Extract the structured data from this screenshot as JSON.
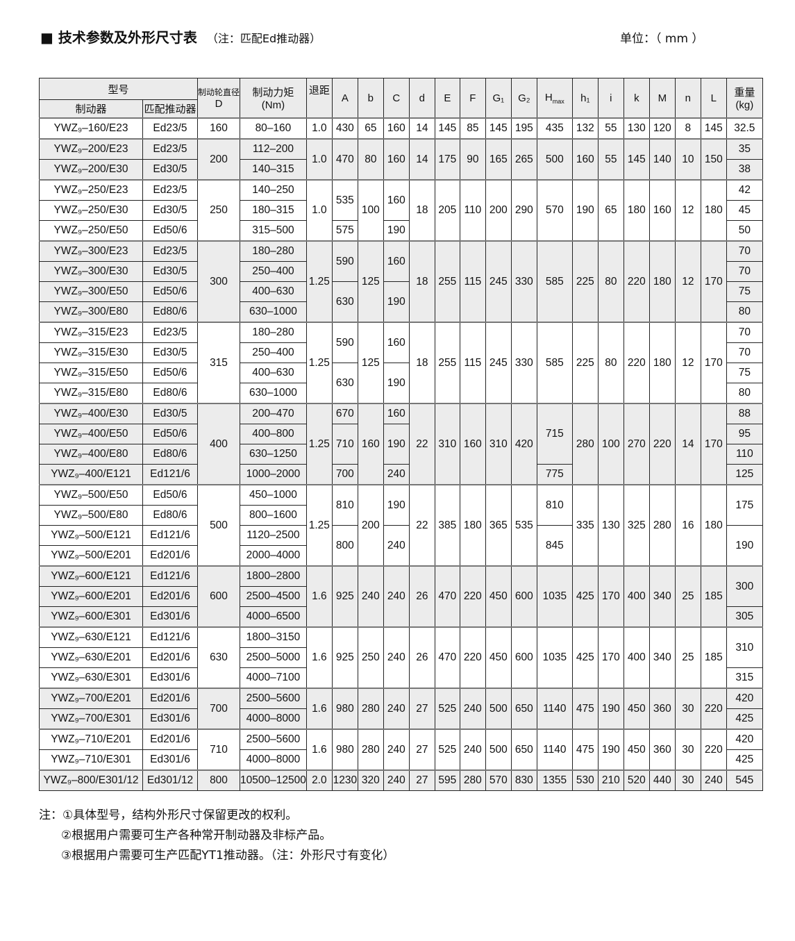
{
  "title": "■ 技术参数及外形尺寸表",
  "title_note": "（注：匹配Ed推动器）",
  "unit": "单位：（ mm ）",
  "headers": {
    "model": "型号",
    "brake": "制动器",
    "actuator": "匹配推动器",
    "D_top": "制动轮直径",
    "D": "D",
    "torque": "制动力矩",
    "torque_unit": "(Nm)",
    "retreat": "退距",
    "A": "A",
    "b": "b",
    "C": "C",
    "d": "d",
    "E": "E",
    "F": "F",
    "G1": "G₁",
    "G2": "G₂",
    "H": "H",
    "H_sub": "max",
    "h1": "h₁",
    "i": "i",
    "k": "k",
    "M": "M",
    "n": "n",
    "L": "L",
    "weight": "重量",
    "weight_unit": "(kg)"
  },
  "groups": [
    {
      "shade": false,
      "rows": [
        [
          "YWZ₉–160/E23",
          "Ed23/5",
          "80–160"
        ]
      ],
      "D": "160",
      "retreat": "1.0",
      "A": "430",
      "b": "65",
      "C": "160",
      "d": "14",
      "E": "145",
      "F": "85",
      "G1": "145",
      "G2": "195",
      "Hmax": "435",
      "h1": "132",
      "i": "55",
      "k": "130",
      "M": "120",
      "n": "8",
      "L": "145",
      "weight": [
        [
          "32.5",
          1
        ]
      ]
    },
    {
      "shade": true,
      "rows": [
        [
          "YWZ₉–200/E23",
          "Ed23/5",
          "112–200"
        ],
        [
          "YWZ₉–200/E30",
          "Ed30/5",
          "140–315"
        ]
      ],
      "D": "200",
      "retreat": "1.0",
      "A": "470",
      "b": "80",
      "C": "160",
      "d": "14",
      "E": "175",
      "F": "90",
      "G1": "165",
      "G2": "265",
      "Hmax": "500",
      "h1": "160",
      "i": "55",
      "k": "145",
      "M": "140",
      "n": "10",
      "L": "150",
      "weight": [
        [
          "35",
          1
        ],
        [
          "38",
          1
        ]
      ]
    },
    {
      "shade": false,
      "rows": [
        [
          "YWZ₉–250/E23",
          "Ed23/5",
          "140–250"
        ],
        [
          "YWZ₉–250/E30",
          "Ed30/5",
          "180–315"
        ],
        [
          "YWZ₉–250/E50",
          "Ed50/6",
          "315–500"
        ]
      ],
      "D": "250",
      "retreat": "1.0",
      "A": [
        [
          "535",
          2
        ],
        [
          "575",
          1
        ]
      ],
      "b": "100",
      "C": [
        [
          "160",
          2
        ],
        [
          "190",
          1
        ]
      ],
      "d": "18",
      "E": "205",
      "F": "110",
      "G1": "200",
      "G2": "290",
      "Hmax": "570",
      "h1": "190",
      "i": "65",
      "k": "180",
      "M": "160",
      "n": "12",
      "L": "180",
      "weight": [
        [
          "42",
          1
        ],
        [
          "45",
          1
        ],
        [
          "50",
          1
        ]
      ]
    },
    {
      "shade": true,
      "rows": [
        [
          "YWZ₉–300/E23",
          "Ed23/5",
          "180–280"
        ],
        [
          "YWZ₉–300/E30",
          "Ed30/5",
          "250–400"
        ],
        [
          "YWZ₉–300/E50",
          "Ed50/6",
          "400–630"
        ],
        [
          "YWZ₉–300/E80",
          "Ed80/6",
          "630–1000"
        ]
      ],
      "D": "300",
      "retreat": "1.25",
      "A": [
        [
          "590",
          2
        ],
        [
          "630",
          2
        ]
      ],
      "b": "125",
      "C": [
        [
          "160",
          2
        ],
        [
          "190",
          2
        ]
      ],
      "d": "18",
      "E": "255",
      "F": "115",
      "G1": "245",
      "G2": "330",
      "Hmax": "585",
      "h1": "225",
      "i": "80",
      "k": "220",
      "M": "180",
      "n": "12",
      "L": "170",
      "weight": [
        [
          "70",
          1
        ],
        [
          "70",
          1
        ],
        [
          "75",
          1
        ],
        [
          "80",
          1
        ]
      ]
    },
    {
      "shade": false,
      "rows": [
        [
          "YWZ₉–315/E23",
          "Ed23/5",
          "180–280"
        ],
        [
          "YWZ₉–315/E30",
          "Ed30/5",
          "250–400"
        ],
        [
          "YWZ₉–315/E50",
          "Ed50/6",
          "400–630"
        ],
        [
          "YWZ₉–315/E80",
          "Ed80/6",
          "630–1000"
        ]
      ],
      "D": "315",
      "retreat": "1.25",
      "A": [
        [
          "590",
          2
        ],
        [
          "630",
          2
        ]
      ],
      "b": "125",
      "C": [
        [
          "160",
          2
        ],
        [
          "190",
          2
        ]
      ],
      "d": "18",
      "E": "255",
      "F": "115",
      "G1": "245",
      "G2": "330",
      "Hmax": "585",
      "h1": "225",
      "i": "80",
      "k": "220",
      "M": "180",
      "n": "12",
      "L": "170",
      "weight": [
        [
          "70",
          1
        ],
        [
          "70",
          1
        ],
        [
          "75",
          1
        ],
        [
          "80",
          1
        ]
      ]
    },
    {
      "shade": true,
      "rows": [
        [
          "YWZ₉–400/E30",
          "Ed30/5",
          "200–470"
        ],
        [
          "YWZ₉–400/E50",
          "Ed50/6",
          "400–800"
        ],
        [
          "YWZ₉–400/E80",
          "Ed80/6",
          "630–1250"
        ],
        [
          "YWZ₉–400/E121",
          "Ed121/6",
          "1000–2000"
        ]
      ],
      "D": "400",
      "retreat": "1.25",
      "A": [
        [
          "670",
          1
        ],
        [
          "710",
          2
        ],
        [
          "700",
          1
        ]
      ],
      "b": "160",
      "C": [
        [
          "160",
          1
        ],
        [
          "190",
          2
        ],
        [
          "240",
          1
        ]
      ],
      "d": "22",
      "E": "310",
      "F": "160",
      "G1": "310",
      "G2": "420",
      "Hmax": [
        [
          "715",
          3
        ],
        [
          "775",
          1
        ]
      ],
      "h1": "280",
      "i": "100",
      "k": "270",
      "M": "220",
      "n": "14",
      "L": "170",
      "weight": [
        [
          "88",
          1
        ],
        [
          "95",
          1
        ],
        [
          "110",
          1
        ],
        [
          "125",
          1
        ]
      ]
    },
    {
      "shade": false,
      "rows": [
        [
          "YWZ₉–500/E50",
          "Ed50/6",
          "450–1000"
        ],
        [
          "YWZ₉–500/E80",
          "Ed80/6",
          "800–1600"
        ],
        [
          "YWZ₉–500/E121",
          "Ed121/6",
          "1120–2500"
        ],
        [
          "YWZ₉–500/E201",
          "Ed201/6",
          "2000–4000"
        ]
      ],
      "D": "500",
      "retreat": "1.25",
      "A": [
        [
          "810",
          2
        ],
        [
          "800",
          2
        ]
      ],
      "b": "200",
      "C": [
        [
          "190",
          2
        ],
        [
          "240",
          2
        ]
      ],
      "d": "22",
      "E": "385",
      "F": "180",
      "G1": "365",
      "G2": "535",
      "Hmax": [
        [
          "810",
          2
        ],
        [
          "845",
          2
        ]
      ],
      "h1": "335",
      "i": "130",
      "k": "325",
      "M": "280",
      "n": "16",
      "L": "180",
      "weight": [
        [
          "175",
          2
        ],
        [
          "190",
          2
        ]
      ]
    },
    {
      "shade": true,
      "rows": [
        [
          "YWZ₉–600/E121",
          "Ed121/6",
          "1800–2800"
        ],
        [
          "YWZ₉–600/E201",
          "Ed201/6",
          "2500–4500"
        ],
        [
          "YWZ₉–600/E301",
          "Ed301/6",
          "4000–6500"
        ]
      ],
      "D": "600",
      "retreat": "1.6",
      "A": "925",
      "b": "240",
      "C": "240",
      "d": "26",
      "E": "470",
      "F": "220",
      "G1": "450",
      "G2": "600",
      "Hmax": "1035",
      "h1": "425",
      "i": "170",
      "k": "400",
      "M": "340",
      "n": "25",
      "L": "185",
      "weight": [
        [
          "300",
          2
        ],
        [
          "305",
          1
        ]
      ]
    },
    {
      "shade": false,
      "rows": [
        [
          "YWZ₉–630/E121",
          "Ed121/6",
          "1800–3150"
        ],
        [
          "YWZ₉–630/E201",
          "Ed201/6",
          "2500–5000"
        ],
        [
          "YWZ₉–630/E301",
          "Ed301/6",
          "4000–7100"
        ]
      ],
      "D": "630",
      "retreat": "1.6",
      "A": "925",
      "b": "250",
      "C": "240",
      "d": "26",
      "E": "470",
      "F": "220",
      "G1": "450",
      "G2": "600",
      "Hmax": "1035",
      "h1": "425",
      "i": "170",
      "k": "400",
      "M": "340",
      "n": "25",
      "L": "185",
      "weight": [
        [
          "310",
          2
        ],
        [
          "315",
          1
        ]
      ]
    },
    {
      "shade": true,
      "rows": [
        [
          "YWZ₉–700/E201",
          "Ed201/6",
          "2500–5600"
        ],
        [
          "YWZ₉–700/E301",
          "Ed301/6",
          "4000–8000"
        ]
      ],
      "D": "700",
      "retreat": "1.6",
      "A": "980",
      "b": "280",
      "C": "240",
      "d": "27",
      "E": "525",
      "F": "240",
      "G1": "500",
      "G2": "650",
      "Hmax": "1140",
      "h1": "475",
      "i": "190",
      "k": "450",
      "M": "360",
      "n": "30",
      "L": "220",
      "weight": [
        [
          "420",
          1
        ],
        [
          "425",
          1
        ]
      ]
    },
    {
      "shade": false,
      "rows": [
        [
          "YWZ₉–710/E201",
          "Ed201/6",
          "2500–5600"
        ],
        [
          "YWZ₉–710/E301",
          "Ed301/6",
          "4000–8000"
        ]
      ],
      "D": "710",
      "retreat": "1.6",
      "A": "980",
      "b": "280",
      "C": "240",
      "d": "27",
      "E": "525",
      "F": "240",
      "G1": "500",
      "G2": "650",
      "Hmax": "1140",
      "h1": "475",
      "i": "190",
      "k": "450",
      "M": "360",
      "n": "30",
      "L": "220",
      "weight": [
        [
          "420",
          1
        ],
        [
          "425",
          1
        ]
      ]
    },
    {
      "shade": true,
      "rows": [
        [
          "YWZ₉–800/E301/12",
          "Ed301/12",
          "10500–12500"
        ]
      ],
      "D": "800",
      "retreat": "2.0",
      "A": "1230",
      "b": "320",
      "C": "240",
      "d": "27",
      "E": "595",
      "F": "280",
      "G1": "570",
      "G2": "830",
      "Hmax": "1355",
      "h1": "530",
      "i": "210",
      "k": "520",
      "M": "440",
      "n": "30",
      "L": "240",
      "weight": [
        [
          "545",
          1
        ]
      ]
    }
  ],
  "notes": [
    "注：①具体型号，结构外形尺寸保留更改的权利。",
    "②根据用户需要可生产各种常开制动器及非标产品。",
    "③根据用户需要可生产匹配YT1推动器。（注：外形尺寸有变化）"
  ]
}
